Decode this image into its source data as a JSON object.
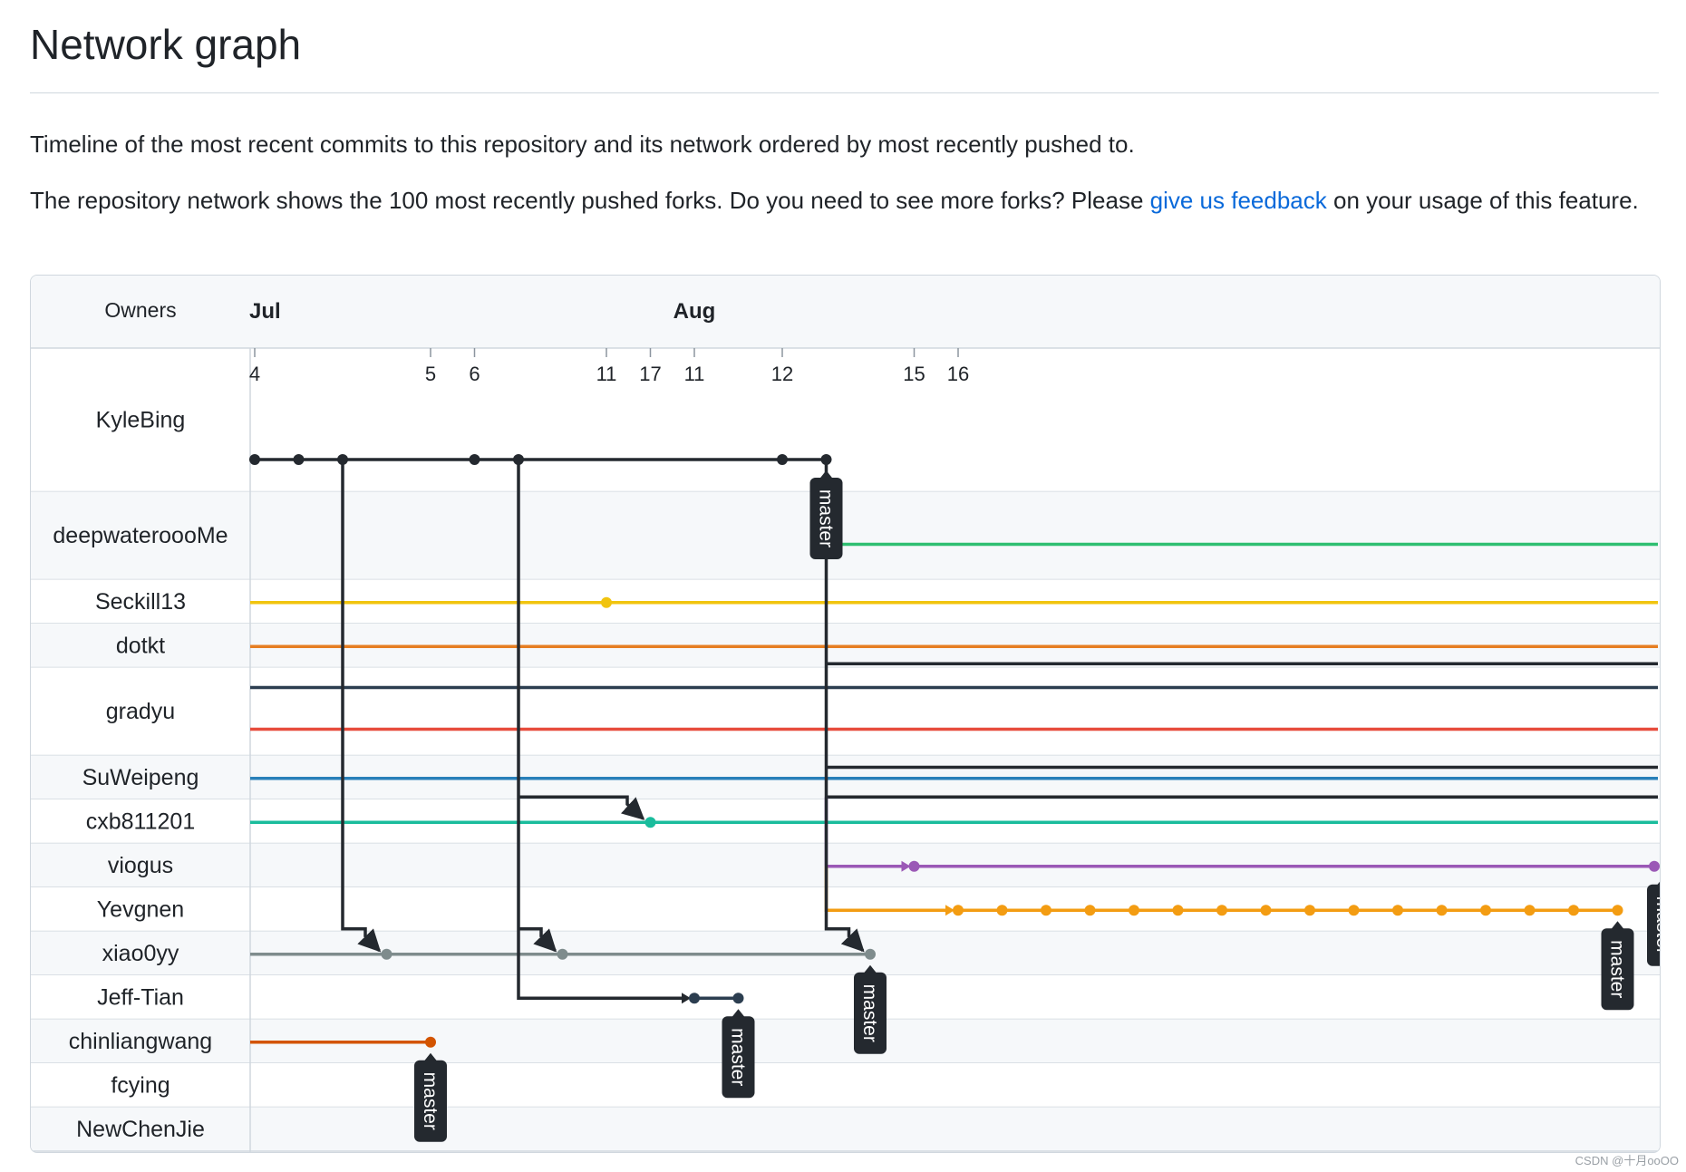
{
  "page": {
    "title": "Network graph",
    "description": "Timeline of the most recent commits to this repository and its network ordered by most recently pushed to.",
    "note_before_link": "The repository network shows the 100 most recently pushed forks. Do you need to see more forks? Please ",
    "feedback_link": "give us feedback",
    "note_after_link": " on your usage of this feature."
  },
  "graph": {
    "owners_header": "Owners",
    "months": [
      {
        "label": "Jul",
        "col": 0
      },
      {
        "label": "Aug",
        "col": 10
      }
    ],
    "dates": [
      {
        "label": "4",
        "col": 0
      },
      {
        "label": "5",
        "col": 4
      },
      {
        "label": "6",
        "col": 5
      },
      {
        "label": "11",
        "col": 8
      },
      {
        "label": "17",
        "col": 9
      },
      {
        "label": "11",
        "col": 10
      },
      {
        "label": "12",
        "col": 12
      },
      {
        "label": "15",
        "col": 15
      },
      {
        "label": "16",
        "col": 16
      }
    ],
    "owners": [
      {
        "name": "KyleBing",
        "lanes": 1
      },
      {
        "name": "deepwateroooMe",
        "lanes": 1
      },
      {
        "name": "Seckill13",
        "lanes": 1
      },
      {
        "name": "dotkt",
        "lanes": 1
      },
      {
        "name": "gradyu",
        "lanes": 2
      },
      {
        "name": "SuWeipeng",
        "lanes": 1
      },
      {
        "name": "cxb811201",
        "lanes": 1
      },
      {
        "name": "viogus",
        "lanes": 1
      },
      {
        "name": "Yevgnen",
        "lanes": 1
      },
      {
        "name": "xiao0yy",
        "lanes": 1
      },
      {
        "name": "Jeff-Tian",
        "lanes": 1
      },
      {
        "name": "chinliangwang",
        "lanes": 1
      },
      {
        "name": "fcying",
        "lanes": 1
      },
      {
        "name": "NewChenJie",
        "lanes": 1
      }
    ],
    "branch_label": "master",
    "colors": {
      "KyleBing": "#24292f",
      "deepwateroooMe": "#2fbf71",
      "Seckill13": "#f1c40f",
      "dotkt": "#e67e22",
      "gradyu_a": "#2c3e50",
      "gradyu_b": "#e74c3c",
      "SuWeipeng": "#2980b9",
      "cxb811201": "#1abc9c",
      "viogus": "#9b59b6",
      "Yevgnen": "#f39c12",
      "xiao0yy": "#7f8c8d",
      "Jeff-Tian": "#2c3e50",
      "chinliangwang": "#d35400"
    }
  },
  "footer": {
    "watermark": "CSDN @十月ooOO"
  }
}
